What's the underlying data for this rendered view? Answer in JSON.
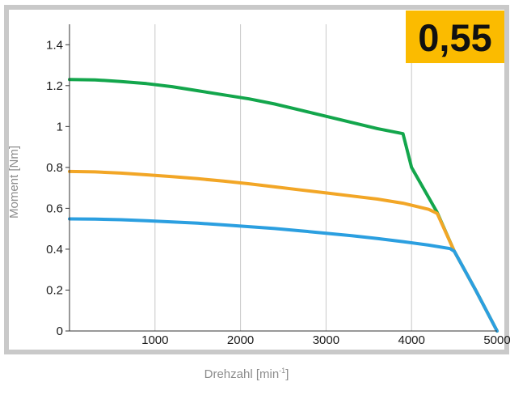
{
  "chart_data": {
    "type": "line",
    "title": "",
    "badge": "0,55",
    "xlabel_main": "Drehzahl [min",
    "xlabel_sup": "-1",
    "xlabel_end": "]",
    "ylabel": "Moment [Nm]",
    "xlim": [
      0,
      5000
    ],
    "ylim": [
      0,
      1.5
    ],
    "x_ticks": [
      {
        "value": 1000,
        "label": "1000"
      },
      {
        "value": 2000,
        "label": "2000"
      },
      {
        "value": 3000,
        "label": "3000"
      },
      {
        "value": 4000,
        "label": "4000"
      },
      {
        "value": 5000,
        "label": "5000"
      }
    ],
    "y_ticks": [
      {
        "value": 0,
        "label": "0"
      },
      {
        "value": 0.2,
        "label": "0.2"
      },
      {
        "value": 0.4,
        "label": "0.4"
      },
      {
        "value": 0.6,
        "label": "0.6"
      },
      {
        "value": 0.8,
        "label": "0.8"
      },
      {
        "value": 1.0,
        "label": "1"
      },
      {
        "value": 1.2,
        "label": "1.2"
      },
      {
        "value": 1.4,
        "label": "1.4"
      }
    ],
    "grid": true,
    "series": [
      {
        "color": "#13a64c",
        "x": [
          0,
          300,
          600,
          900,
          1200,
          1500,
          1800,
          2100,
          2400,
          2700,
          3000,
          3300,
          3600,
          3900,
          4000,
          4300,
          4500,
          4750,
          5000
        ],
        "y": [
          1.23,
          1.228,
          1.22,
          1.21,
          1.195,
          1.175,
          1.155,
          1.135,
          1.11,
          1.08,
          1.05,
          1.02,
          0.99,
          0.965,
          0.8,
          0.58,
          0.39,
          0.2,
          0.0
        ]
      },
      {
        "color": "#f2a626",
        "x": [
          0,
          300,
          600,
          900,
          1200,
          1500,
          1800,
          2100,
          2400,
          2700,
          3000,
          3300,
          3600,
          3900,
          4200,
          4300,
          4500,
          4750,
          5000
        ],
        "y": [
          0.78,
          0.778,
          0.772,
          0.764,
          0.755,
          0.745,
          0.733,
          0.72,
          0.705,
          0.69,
          0.675,
          0.66,
          0.645,
          0.625,
          0.595,
          0.575,
          0.39,
          0.2,
          0.0
        ]
      },
      {
        "color": "#2b9fe0",
        "x": [
          0,
          300,
          600,
          900,
          1200,
          1500,
          1800,
          2100,
          2400,
          2700,
          3000,
          3300,
          3600,
          3900,
          4200,
          4450,
          4500,
          4750,
          5000
        ],
        "y": [
          0.548,
          0.547,
          0.544,
          0.539,
          0.533,
          0.527,
          0.519,
          0.51,
          0.501,
          0.49,
          0.478,
          0.466,
          0.452,
          0.437,
          0.42,
          0.403,
          0.39,
          0.2,
          0.0
        ]
      }
    ]
  },
  "colors": {
    "frame": "#c9c9c9",
    "grid": "#c8c8c8",
    "badge": "#fbbb00",
    "axis": "#333333"
  }
}
